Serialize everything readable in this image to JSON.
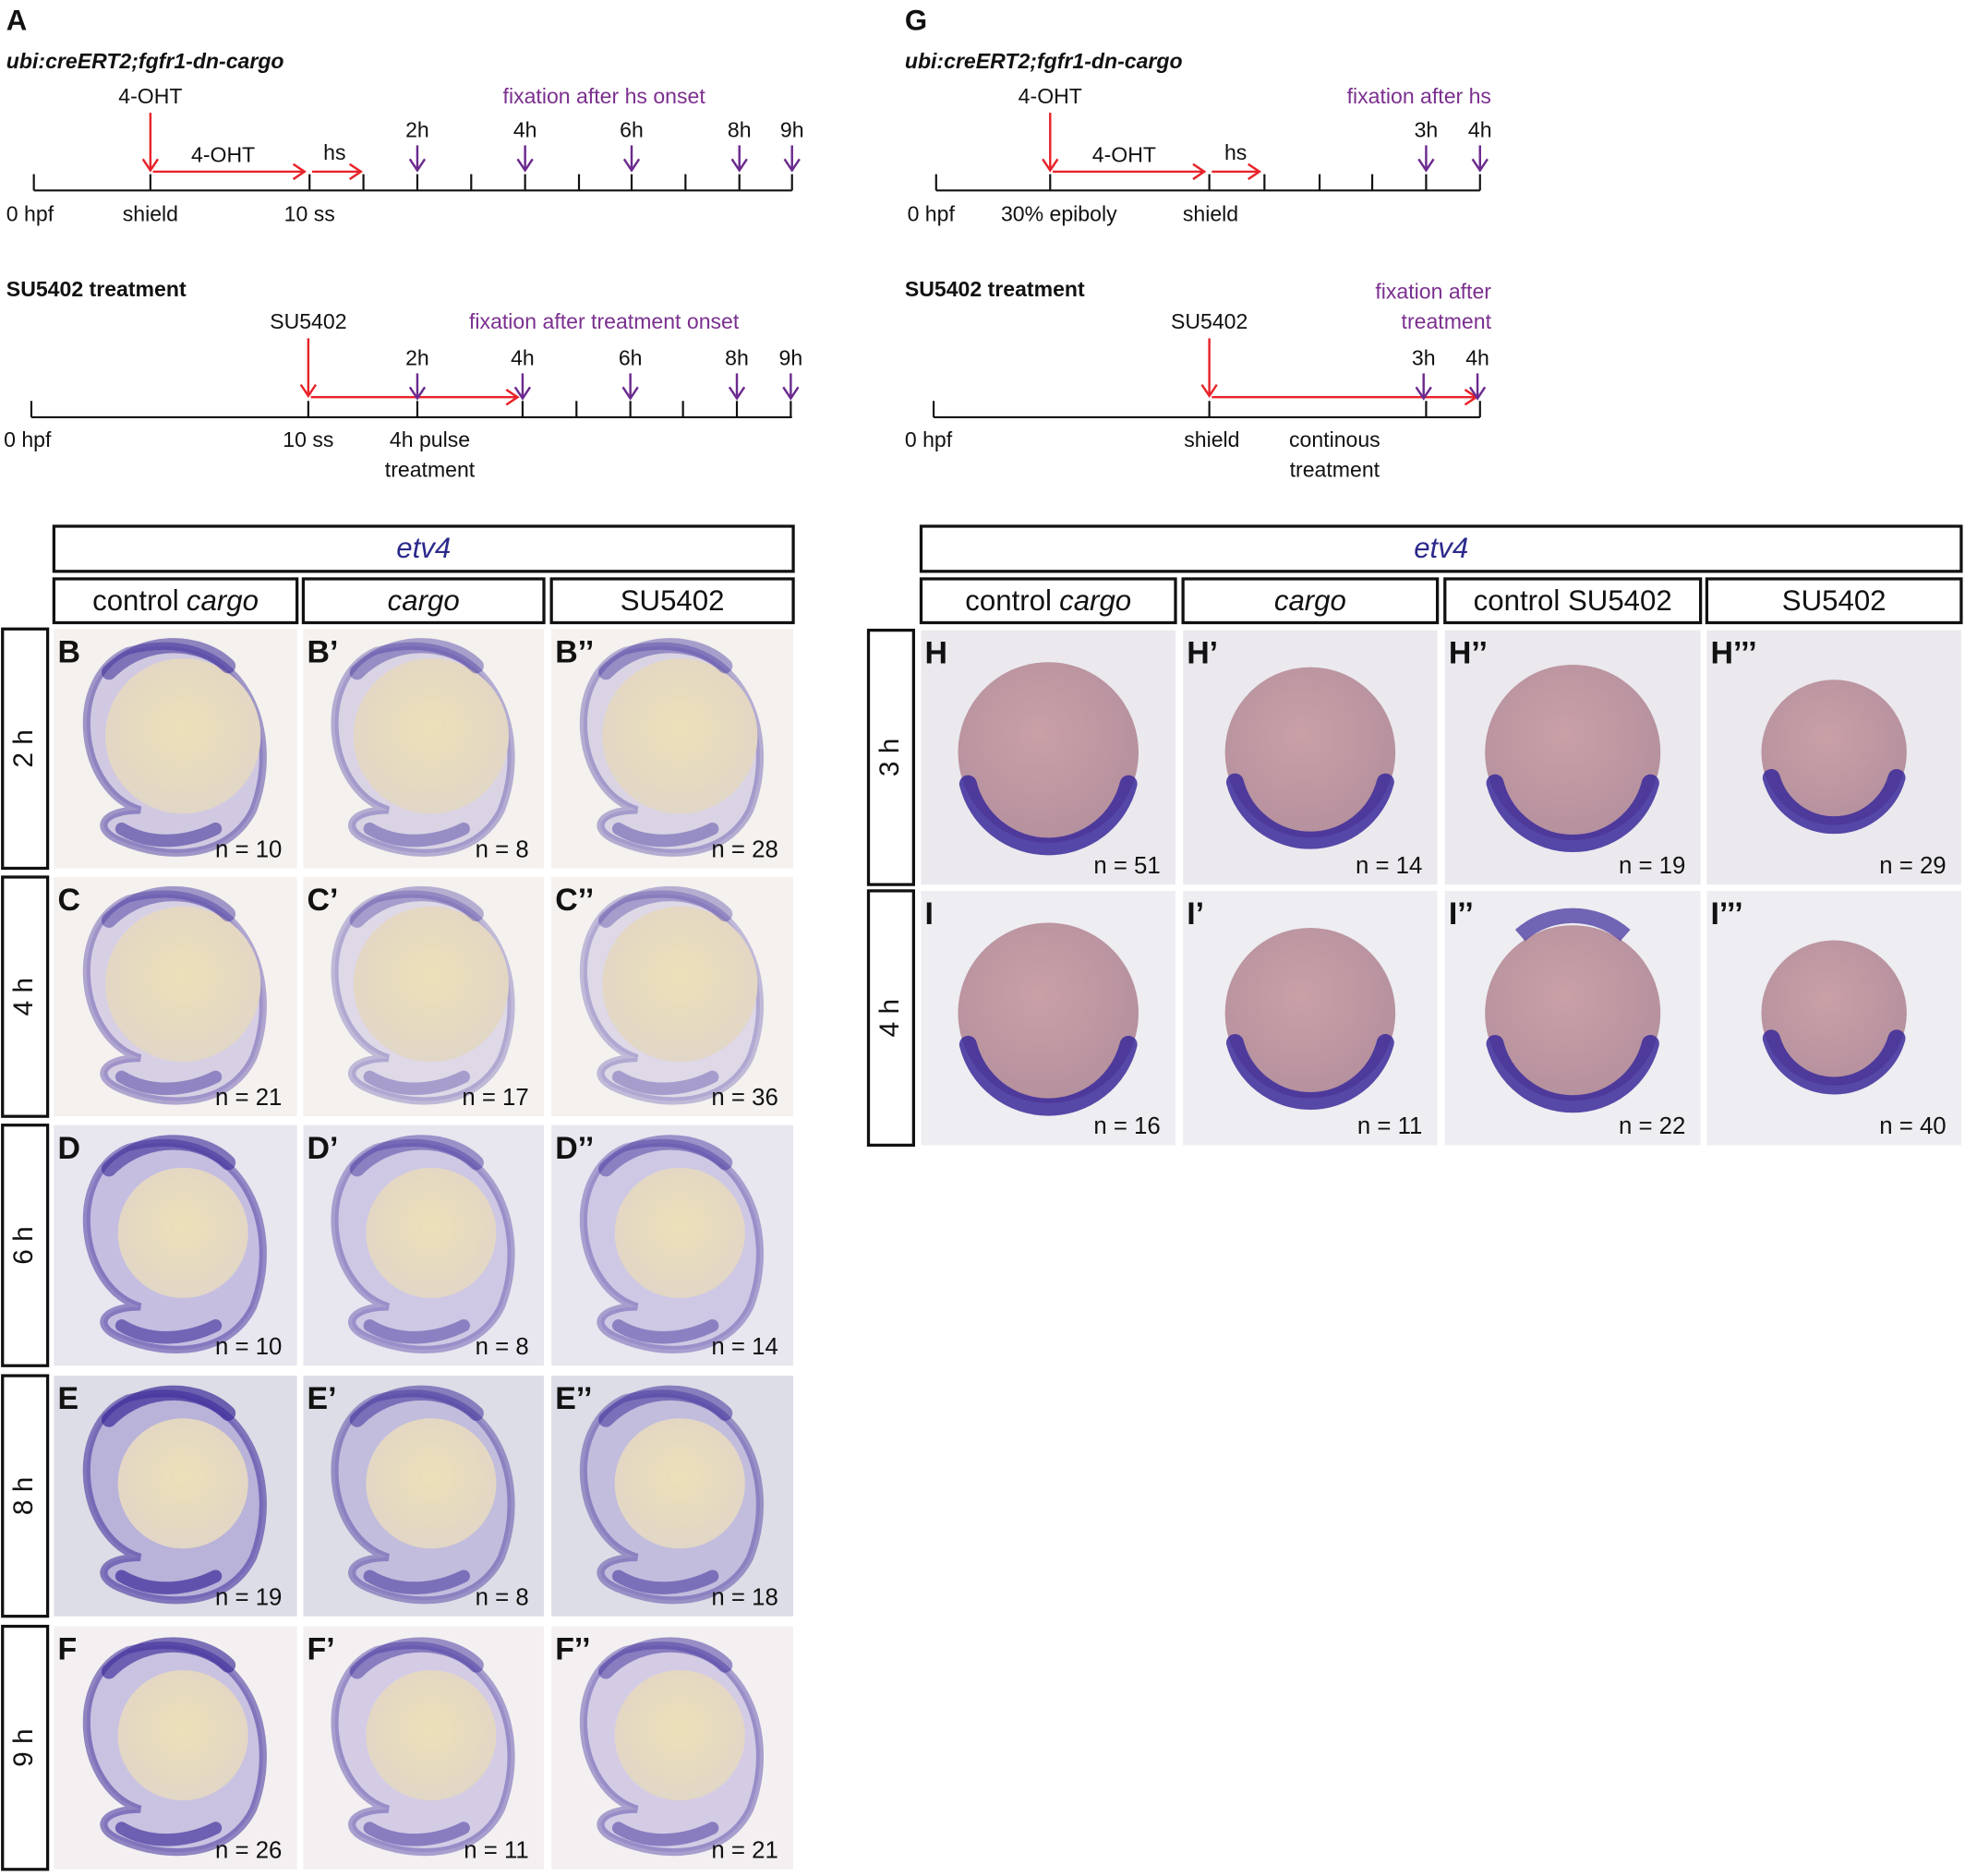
{
  "panel_a": {
    "label": "A",
    "cargo": {
      "title": "ubi:creERT2;fgfr1-dn-cargo",
      "drug": "4-OHT",
      "arrow": "4-OHT",
      "hs": "hs",
      "fixation": "fixation after hs onset",
      "times": [
        "2h",
        "4h",
        "6h",
        "8h",
        "9h"
      ],
      "stages": [
        "0 hpf",
        "shield",
        "10 ss"
      ]
    },
    "su5402": {
      "title": "SU5402 treatment",
      "drug": "SU5402",
      "fixation": "fixation after treatment onset",
      "times": [
        "2h",
        "4h",
        "6h",
        "8h",
        "9h"
      ],
      "stages": [
        "0 hpf",
        "10 ss"
      ],
      "note": [
        "4h pulse",
        "treatment"
      ]
    }
  },
  "panel_g": {
    "label": "G",
    "cargo": {
      "title": "ubi:creERT2;fgfr1-dn-cargo",
      "drug": "4-OHT",
      "arrow": "4-OHT",
      "hs": "hs",
      "fixation": "fixation after hs",
      "times": [
        "3h",
        "4h"
      ],
      "stages": [
        "0 hpf",
        "30% epiboly",
        "shield"
      ]
    },
    "su5402": {
      "title": "SU5402 treatment",
      "drug": "SU5402",
      "fixation": [
        "fixation after",
        "treatment"
      ],
      "times": [
        "3h",
        "4h"
      ],
      "stages": [
        "0 hpf",
        "shield"
      ],
      "note": [
        "continous",
        "treatment"
      ]
    }
  },
  "grid_left": {
    "gene": "etv4",
    "columns": [
      {
        "text": "control",
        "em": "cargo"
      },
      {
        "em": "cargo"
      },
      {
        "text": "SU5402"
      }
    ],
    "rows": [
      {
        "time": "2 h",
        "panels": [
          {
            "label": "B",
            "n": "n = 10"
          },
          {
            "label": "B’",
            "n": "n = 8"
          },
          {
            "label": "B’’",
            "n": "n = 28"
          }
        ]
      },
      {
        "time": "4 h",
        "panels": [
          {
            "label": "C",
            "n": "n = 21"
          },
          {
            "label": "C’",
            "n": "n = 17"
          },
          {
            "label": "C’’",
            "n": "n = 36"
          }
        ]
      },
      {
        "time": "6 h",
        "panels": [
          {
            "label": "D",
            "n": "n = 10"
          },
          {
            "label": "D’",
            "n": "n = 8"
          },
          {
            "label": "D’’",
            "n": "n = 14"
          }
        ]
      },
      {
        "time": "8 h",
        "panels": [
          {
            "label": "E",
            "n": "n = 19"
          },
          {
            "label": "E’",
            "n": "n = 8"
          },
          {
            "label": "E’’",
            "n": "n = 18"
          }
        ]
      },
      {
        "time": "9 h",
        "panels": [
          {
            "label": "F",
            "n": "n = 26"
          },
          {
            "label": "F’",
            "n": "n = 11"
          },
          {
            "label": "F’’",
            "n": "n = 21"
          }
        ]
      }
    ]
  },
  "grid_right": {
    "gene": "etv4",
    "columns": [
      {
        "text": "control",
        "em": "cargo"
      },
      {
        "em": "cargo"
      },
      {
        "text": "control SU5402"
      },
      {
        "text": "SU5402"
      }
    ],
    "rows": [
      {
        "time": "3 h",
        "panels": [
          {
            "label": "H",
            "n": "n = 51"
          },
          {
            "label": "H’",
            "n": "n = 14"
          },
          {
            "label": "H’’",
            "n": "n = 19"
          },
          {
            "label": "H’’’",
            "n": "n = 29"
          }
        ]
      },
      {
        "time": "4 h",
        "panels": [
          {
            "label": "I",
            "n": "n = 16"
          },
          {
            "label": "I’",
            "n": "n = 11"
          },
          {
            "label": "I’’",
            "n": "n = 22"
          },
          {
            "label": "I’’’",
            "n": "n = 40"
          }
        ]
      }
    ]
  }
}
